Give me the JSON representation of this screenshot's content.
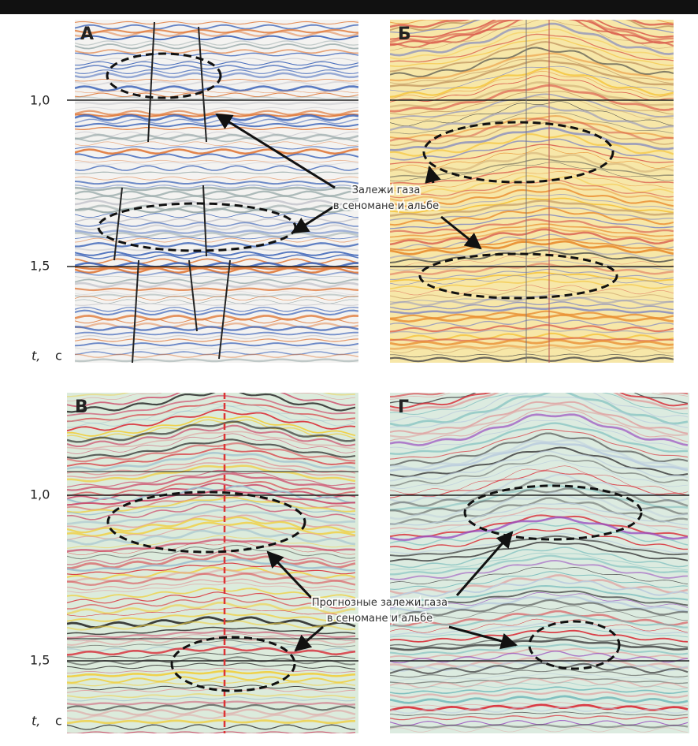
{
  "panels": [
    {
      "label": "А"
    },
    {
      "label": "Б"
    },
    {
      "label": "В"
    },
    {
      "label": "Г"
    }
  ],
  "axis": {
    "ticks": [
      "1,0",
      "1,5"
    ],
    "symbol": "t,",
    "unit": "с"
  },
  "annotations": [
    {
      "lines": [
        "Залежи газа",
        "в сеномане и альбе"
      ]
    },
    {
      "lines": [
        "Прогнозные залежи газа",
        "в сеномане и альбе"
      ]
    }
  ]
}
